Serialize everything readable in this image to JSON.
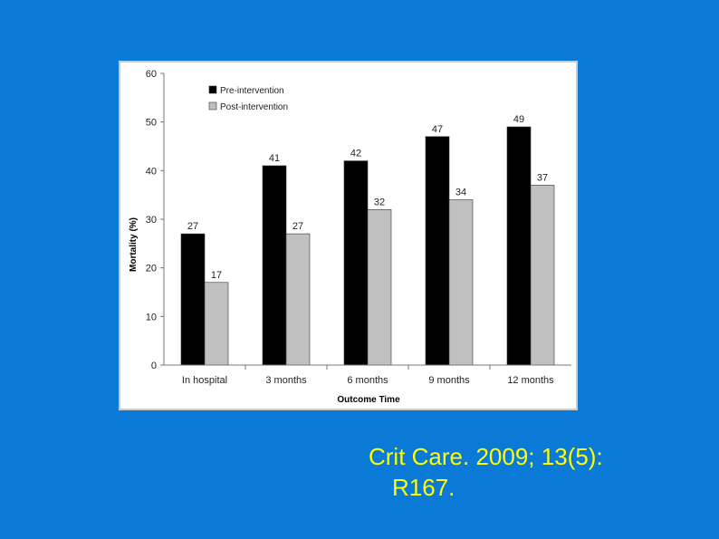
{
  "colors": {
    "background": "#0a7ad6",
    "citation": "#ffff00",
    "pre": "#000000",
    "post": "#c0c0c0"
  },
  "citation": {
    "line1": "Crit Care. 2009; 13(5):",
    "line2": "R167."
  },
  "chart_data": {
    "type": "bar",
    "title": "",
    "xlabel": "Outcome Time",
    "ylabel": "Mortality (%)",
    "ylim": [
      0,
      60
    ],
    "yticks": [
      "0",
      "10",
      "20",
      "30",
      "40",
      "50",
      "60"
    ],
    "categories": [
      "In hospital",
      "3 months",
      "6 months",
      "9 months",
      "12 months"
    ],
    "series": [
      {
        "name": "Pre-intervention",
        "values": [
          27,
          41,
          42,
          47,
          49
        ],
        "labels": [
          "27",
          "41",
          "42",
          "47",
          "49"
        ]
      },
      {
        "name": "Post-intervention",
        "values": [
          17,
          27,
          32,
          34,
          37
        ],
        "labels": [
          "17",
          "27",
          "32",
          "34",
          "37"
        ]
      }
    ],
    "legend": "top-left",
    "grid": false
  }
}
